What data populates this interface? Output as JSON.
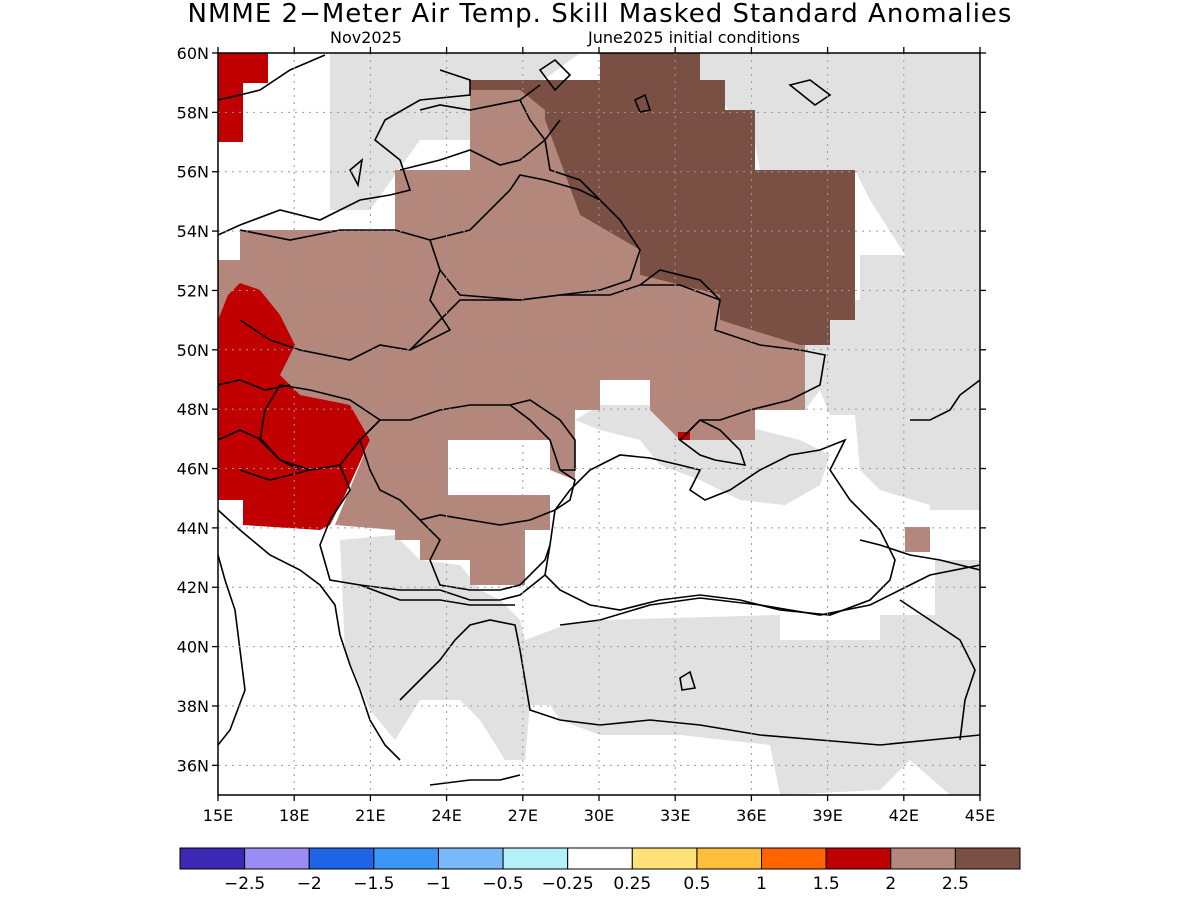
{
  "title": "NMME 2−Meter Air Temp. Skill Masked Standard Anomalies",
  "subtitle_left": "Nov2025",
  "subtitle_right": "June2025 initial conditions",
  "map": {
    "lon_range": [
      15,
      45
    ],
    "lat_range": [
      35,
      60
    ],
    "lat_ticks": [
      {
        "value": 36,
        "label": "36N"
      },
      {
        "value": 38,
        "label": "38N"
      },
      {
        "value": 40,
        "label": "40N"
      },
      {
        "value": 42,
        "label": "42N"
      },
      {
        "value": 44,
        "label": "44N"
      },
      {
        "value": 46,
        "label": "46N"
      },
      {
        "value": 48,
        "label": "48N"
      },
      {
        "value": 50,
        "label": "50N"
      },
      {
        "value": 52,
        "label": "52N"
      },
      {
        "value": 54,
        "label": "54N"
      },
      {
        "value": 56,
        "label": "56N"
      },
      {
        "value": 58,
        "label": "58N"
      },
      {
        "value": 60,
        "label": "60N"
      }
    ],
    "lon_ticks": [
      {
        "value": 15,
        "label": "15E"
      },
      {
        "value": 18,
        "label": "18E"
      },
      {
        "value": 21,
        "label": "21E"
      },
      {
        "value": 24,
        "label": "24E"
      },
      {
        "value": 27,
        "label": "27E"
      },
      {
        "value": 30,
        "label": "30E"
      },
      {
        "value": 33,
        "label": "33E"
      },
      {
        "value": 36,
        "label": "36E"
      },
      {
        "value": 39,
        "label": "39E"
      },
      {
        "value": 42,
        "label": "42E"
      },
      {
        "value": 45,
        "label": "45E"
      }
    ],
    "grid": true,
    "colors": {
      "masked": "#e1e1e1",
      "anomaly_1_5_to_2": "#c00000",
      "anomaly_2_to_2_5": "#b4877d",
      "anomaly_above_2_5": "#7b5044",
      "coastline": "#000000"
    }
  },
  "colorbar": {
    "colors": [
      "#3c28b4",
      "#9b8cf5",
      "#1e64e6",
      "#3c96f5",
      "#78b9fa",
      "#b4f0fa",
      "#ffffff",
      "#ffe178",
      "#ffbe3c",
      "#ff6400",
      "#c00000",
      "#b4877d",
      "#7b5044"
    ],
    "labels": [
      "−2.5",
      "−2",
      "−1.5",
      "−1",
      "−0.5",
      "−0.25",
      "0.25",
      "0.5",
      "1",
      "1.5",
      "2",
      "2.5"
    ]
  }
}
